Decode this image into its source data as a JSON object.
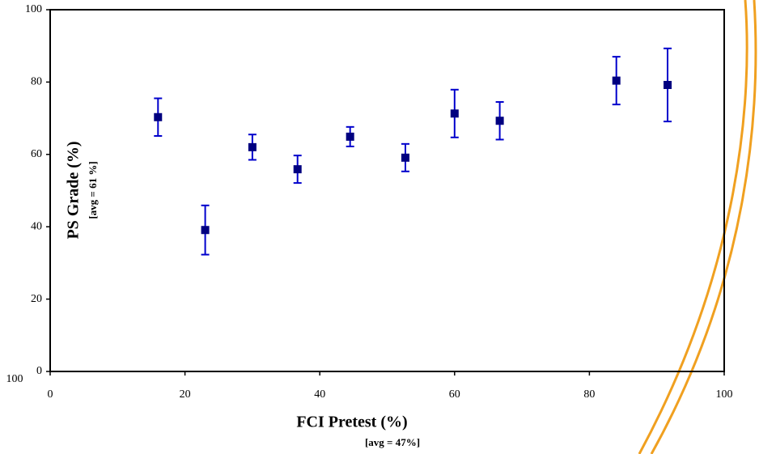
{
  "chart_data": {
    "type": "scatter",
    "x_label": "FCI Pretest (%)",
    "x_sublabel": "[avg = 47%]",
    "y_label": "PS Grade (%)",
    "y_sublabel": "[avg  = 61 %]",
    "corner_label": "100",
    "xlim": [
      0,
      100
    ],
    "xticks": [
      0,
      20,
      40,
      60,
      80,
      100
    ],
    "ylim": [
      0,
      100
    ],
    "yticks": [
      0,
      20,
      40,
      60,
      80,
      100
    ],
    "series": [
      {
        "color": "#000080",
        "error_color": "#0000cc",
        "x": [
          16,
          23,
          30,
          36.7,
          44.5,
          52.7,
          60,
          66.7,
          84,
          91.6
        ],
        "values": [
          70.3,
          39.1,
          62,
          55.9,
          64.9,
          59.1,
          71.3,
          69.3,
          80.4,
          79.2
        ],
        "errors": [
          5.2,
          6.8,
          3.5,
          3.8,
          2.7,
          3.8,
          6.6,
          5.2,
          6.6,
          10.1
        ]
      }
    ]
  }
}
